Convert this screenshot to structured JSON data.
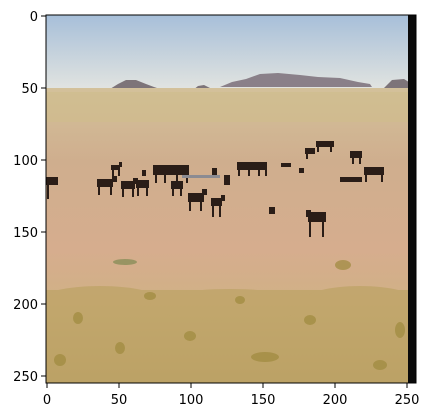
{
  "figure": {
    "x_ticks": [
      "0",
      "50",
      "100",
      "150",
      "200",
      "250"
    ],
    "y_ticks": [
      "0",
      "50",
      "100",
      "150",
      "200",
      "250"
    ]
  },
  "photo": {
    "scene": "desert-plain-with-horses",
    "colors": {
      "sky_top": "#a9c1db",
      "sky_bottom": "#dfe3e2",
      "mountains": "#7e7478",
      "ground_far": "#cdb98e",
      "ground_mid": "#d1a98a",
      "ground_near": "#c9ae7c",
      "grass": "#b9a25a",
      "horse": "#2a1d17",
      "right_strip": "#0a0a0a"
    }
  }
}
